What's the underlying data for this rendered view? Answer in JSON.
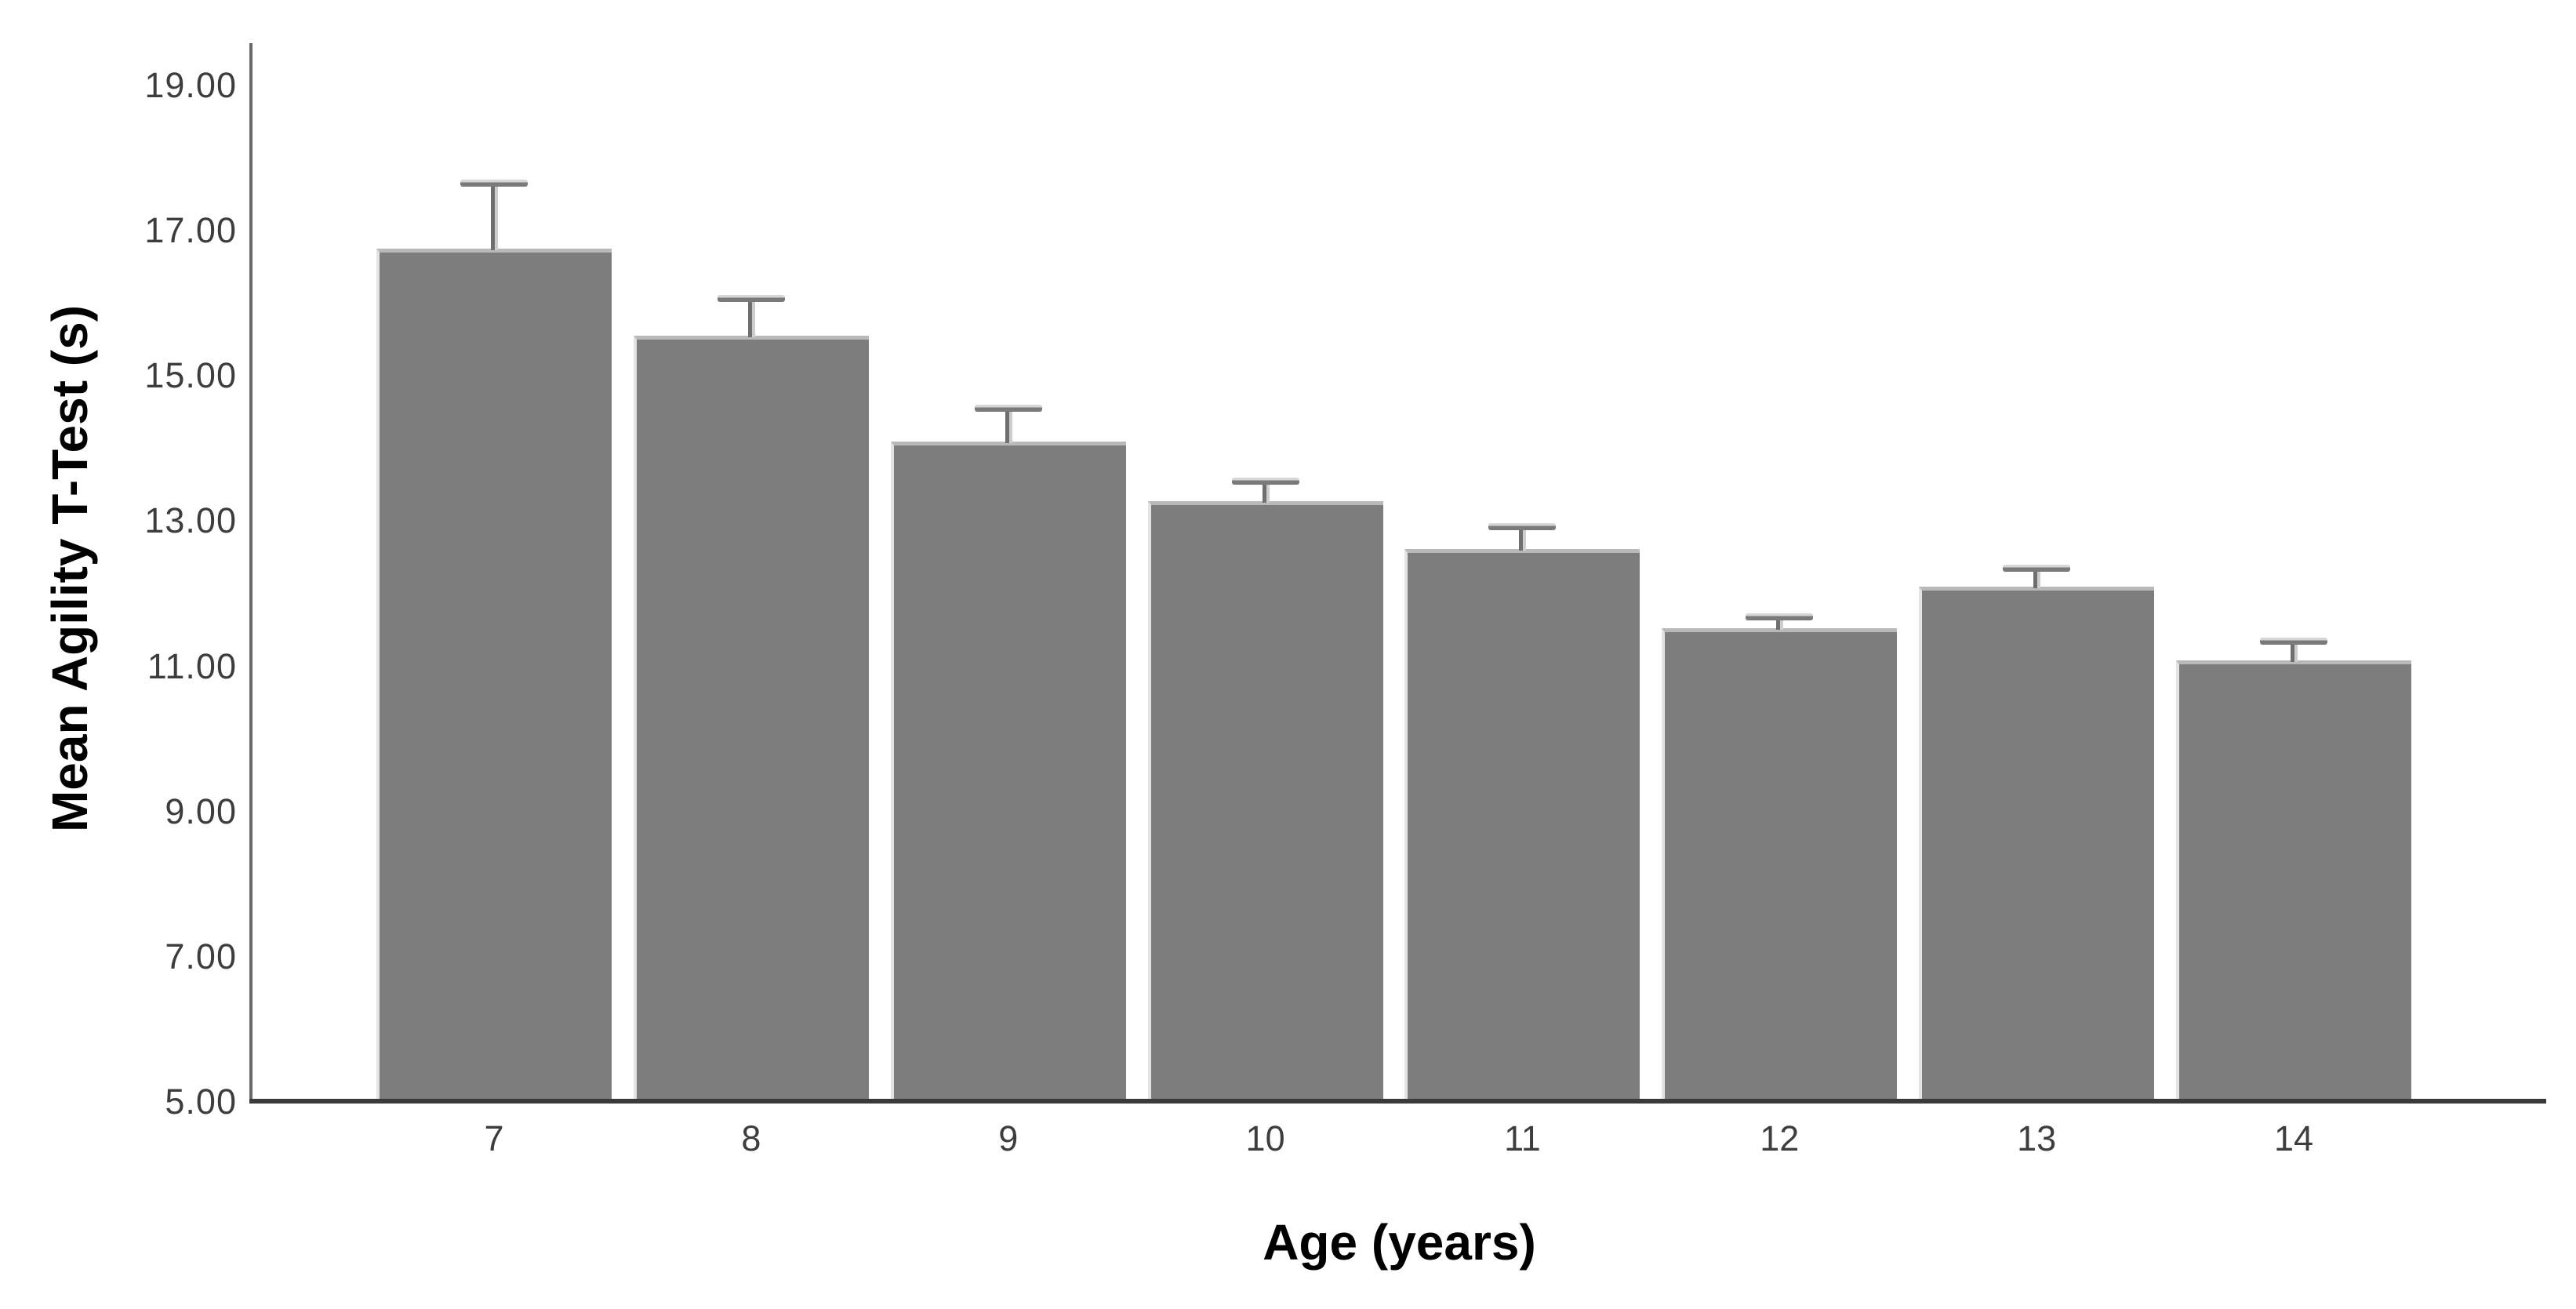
{
  "chart_data": {
    "type": "bar",
    "title": "",
    "xlabel": "Age (years)",
    "ylabel": "Mean Agility T-Test (s)",
    "categories": [
      "7",
      "8",
      "9",
      "10",
      "11",
      "12",
      "13",
      "14"
    ],
    "series": [
      {
        "name": "Mean Agility T-Test (s)",
        "values": [
          16.75,
          15.55,
          14.1,
          13.28,
          12.62,
          11.52,
          12.1,
          11.08
        ],
        "errors_plus": [
          0.95,
          0.57,
          0.5,
          0.32,
          0.35,
          0.21,
          0.3,
          0.32
        ]
      }
    ],
    "error_bars": "upper-only",
    "ytick_labels": [
      "19.00",
      "17.00",
      "15.00",
      "13.00",
      "11.00",
      "9.00",
      "7.00",
      "5.00"
    ],
    "ytick_values": [
      19,
      17,
      15,
      13,
      11,
      9,
      7,
      5
    ],
    "ylim": [
      5,
      19.6
    ],
    "grid": false,
    "legend": false,
    "colors": {
      "bar_fill": "#7d7d7d",
      "bar_top_edge": "#b9b9b9",
      "bar_left_edge": "#e3e3e3",
      "error_bar_dark": "#6f6f6f",
      "error_bar_light": "#cdcdcd",
      "y_axis_line": "#6a6a6a",
      "x_axis_line": "#3a3a3a",
      "tick_label": "#3d3d3d",
      "axis_title": "#000000"
    }
  }
}
